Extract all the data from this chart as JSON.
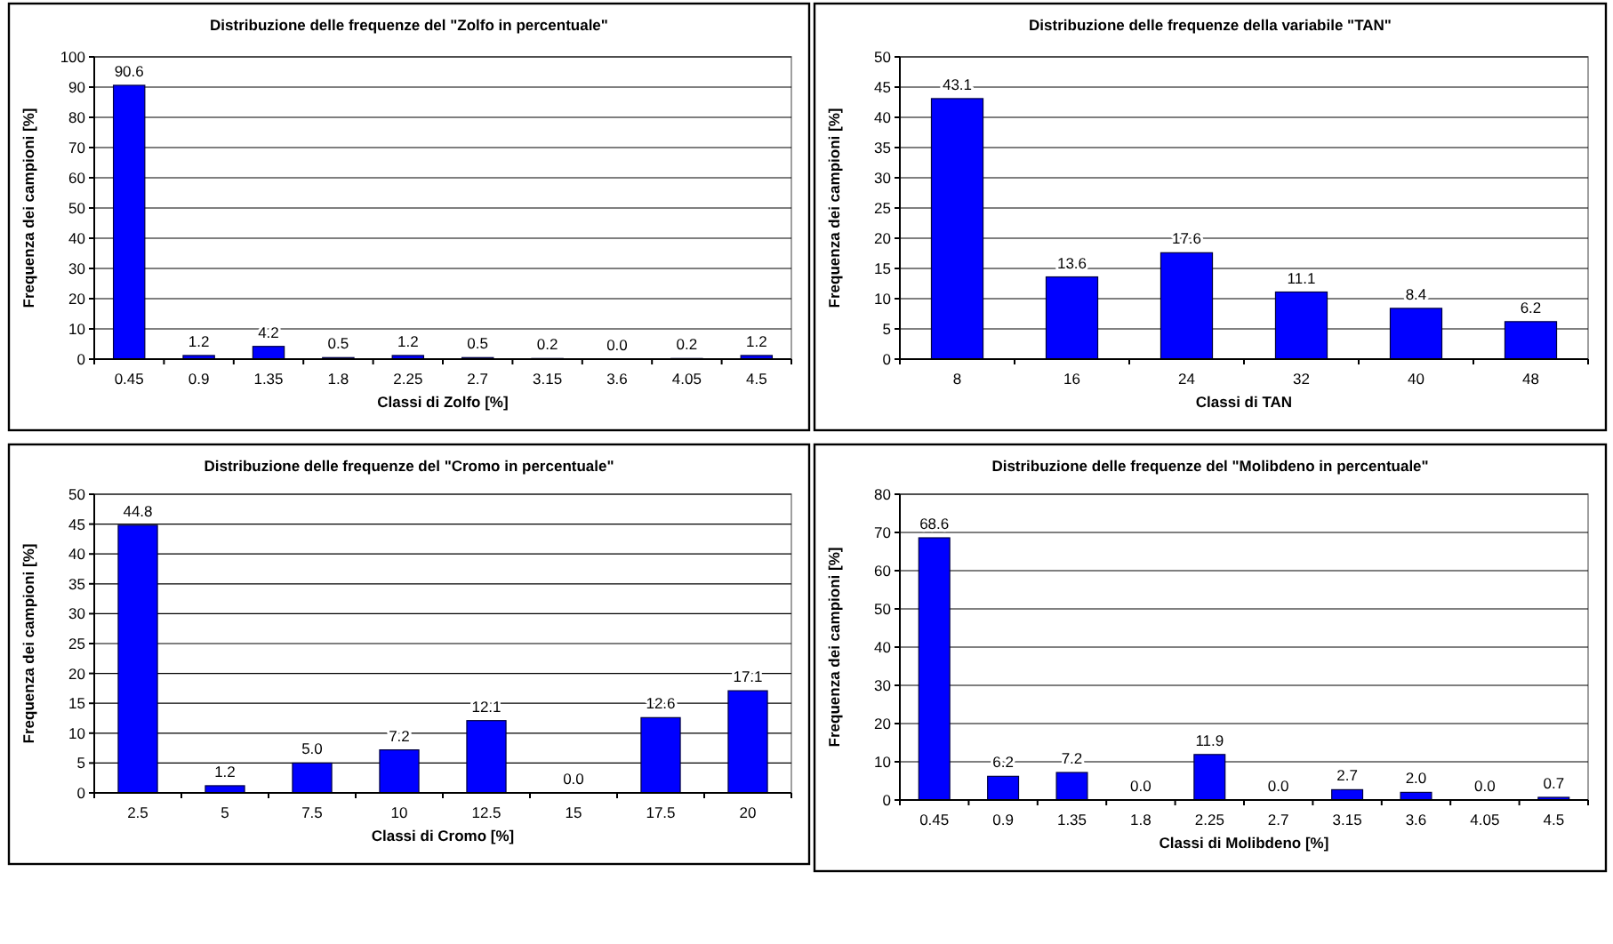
{
  "chart_data": [
    {
      "type": "bar",
      "title": "Distribuzione delle frequenze del \"Zolfo in percentuale\"",
      "xlabel": "Classi di Zolfo [%]",
      "ylabel": "Frequenza dei campioni [%]",
      "categories": [
        "0.45",
        "0.9",
        "1.35",
        "1.8",
        "2.25",
        "2.7",
        "3.15",
        "3.6",
        "4.05",
        "4.5"
      ],
      "values": [
        90.6,
        1.2,
        4.2,
        0.5,
        1.2,
        0.5,
        0.2,
        0.0,
        0.2,
        1.2
      ],
      "value_labels": [
        "90.6",
        "1.2",
        "4.2",
        "0.5",
        "1.2",
        "0.5",
        "0.2",
        "0.0",
        "0.2",
        "1.2"
      ],
      "color": "#0000ff",
      "ylim": [
        0,
        100
      ],
      "yticks": [
        0,
        10,
        20,
        30,
        40,
        50,
        60,
        70,
        80,
        90,
        100
      ],
      "grid": "y"
    },
    {
      "type": "bar",
      "title": "Distribuzione delle frequenze della variabile \"TAN\"",
      "xlabel": "Classi di TAN",
      "ylabel": "Frequenza dei campioni [%]",
      "categories": [
        "8",
        "16",
        "24",
        "32",
        "40",
        "48"
      ],
      "values": [
        43.1,
        13.6,
        17.6,
        11.1,
        8.4,
        6.2
      ],
      "value_labels": [
        "43.1",
        "13.6",
        "17.6",
        "11.1",
        "8.4",
        "6.2"
      ],
      "color": "#0000ff",
      "ylim": [
        0,
        50
      ],
      "yticks": [
        0,
        5,
        10,
        15,
        20,
        25,
        30,
        35,
        40,
        45,
        50
      ],
      "grid": "y"
    },
    {
      "type": "bar",
      "title": "Distribuzione delle frequenze del \"Cromo in percentuale\"",
      "xlabel": "Classi di Cromo [%]",
      "ylabel": "Frequenza dei campioni [%]",
      "categories": [
        "2.5",
        "5",
        "7.5",
        "10",
        "12.5",
        "15",
        "17.5",
        "20"
      ],
      "values": [
        44.8,
        1.2,
        5.0,
        7.2,
        12.1,
        0.0,
        12.6,
        17.1
      ],
      "value_labels": [
        "44.8",
        "1.2",
        "5.0",
        "7.2",
        "12.1",
        "0.0",
        "12.6",
        "17.1"
      ],
      "color": "#0000ff",
      "ylim": [
        0,
        50
      ],
      "yticks": [
        0,
        5,
        10,
        15,
        20,
        25,
        30,
        35,
        40,
        45,
        50
      ],
      "grid": "y"
    },
    {
      "type": "bar",
      "title": "Distribuzione delle frequenze del \"Molibdeno in percentuale\"",
      "xlabel": "Classi di Molibdeno [%]",
      "ylabel": "Frequenza dei campioni [%]",
      "categories": [
        "0.45",
        "0.9",
        "1.35",
        "1.8",
        "2.25",
        "2.7",
        "3.15",
        "3.6",
        "4.05",
        "4.5"
      ],
      "values": [
        68.6,
        6.2,
        7.2,
        0.0,
        11.9,
        0.0,
        2.7,
        2.0,
        0.0,
        0.7
      ],
      "value_labels": [
        "68.6",
        "6.2",
        "7.2",
        "0.0",
        "11.9",
        "0.0",
        "2.7",
        "2.0",
        "0.0",
        "0.7"
      ],
      "color": "#0000ff",
      "ylim": [
        0,
        80
      ],
      "yticks": [
        0,
        10,
        20,
        30,
        40,
        50,
        60,
        70,
        80
      ],
      "grid": "y"
    }
  ]
}
